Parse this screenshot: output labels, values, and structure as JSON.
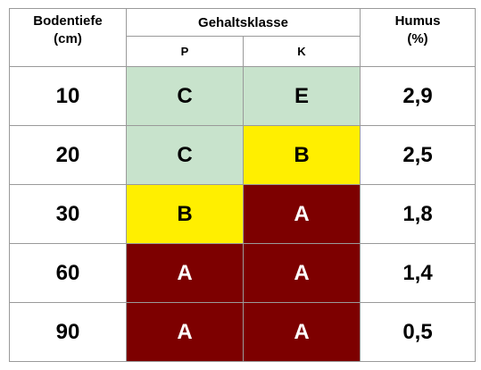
{
  "header": {
    "depth_label": "Bodentiefe",
    "depth_unit": "(cm)",
    "class_label": "Gehaltsklasse",
    "p_label": "P",
    "k_label": "K",
    "humus_label": "Humus",
    "humus_unit": "(%)"
  },
  "colors": {
    "C": "#c8e3cc",
    "E": "#c8e3cc",
    "B": "#ffef00",
    "A": "#7d0000"
  },
  "rows": [
    {
      "depth": "10",
      "p": "C",
      "k": "E",
      "humus": "2,9"
    },
    {
      "depth": "20",
      "p": "C",
      "k": "B",
      "humus": "2,5"
    },
    {
      "depth": "30",
      "p": "B",
      "k": "A",
      "humus": "1,8"
    },
    {
      "depth": "60",
      "p": "A",
      "k": "A",
      "humus": "1,4"
    },
    {
      "depth": "90",
      "p": "A",
      "k": "A",
      "humus": "0,5"
    }
  ]
}
